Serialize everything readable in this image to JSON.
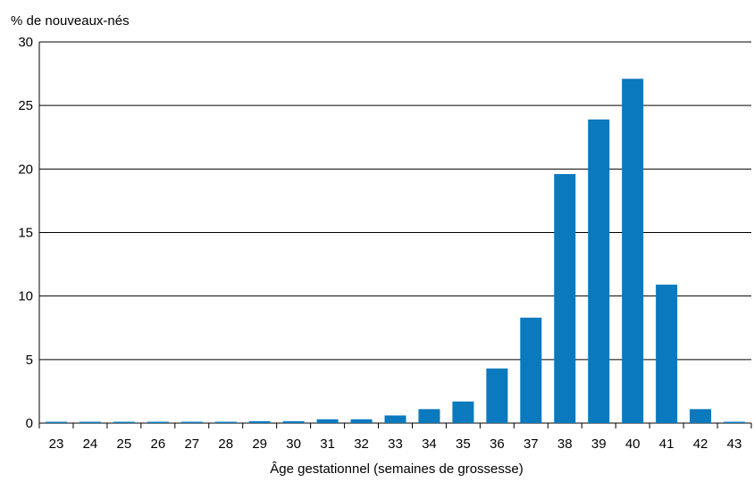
{
  "chart_data": {
    "type": "bar",
    "title": "",
    "ylabel": "% de nouveaux-nés",
    "xlabel": "Âge gestationnel (semaines de grossesse)",
    "ylim": [
      0,
      30
    ],
    "yticks": [
      0,
      5,
      10,
      15,
      20,
      25,
      30
    ],
    "grid": true,
    "bar_color": "#0a79bd",
    "categories": [
      "23",
      "24",
      "25",
      "26",
      "27",
      "28",
      "29",
      "30",
      "31",
      "32",
      "33",
      "34",
      "35",
      "36",
      "37",
      "38",
      "39",
      "40",
      "41",
      "42",
      "43"
    ],
    "values": [
      0.05,
      0.05,
      0.1,
      0.1,
      0.1,
      0.1,
      0.15,
      0.15,
      0.3,
      0.3,
      0.6,
      1.1,
      1.7,
      4.3,
      8.3,
      19.6,
      23.9,
      27.1,
      10.9,
      1.1,
      0.1
    ]
  }
}
